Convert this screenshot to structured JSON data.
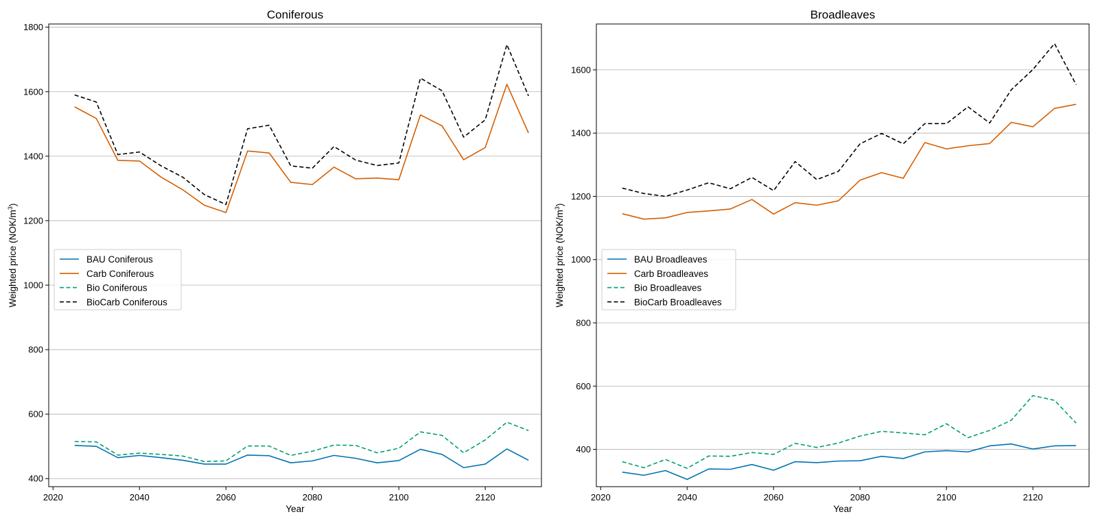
{
  "chart_data": [
    {
      "type": "line",
      "title": "Coniferous",
      "xlabel": "Year",
      "ylabel_main": "Weighted price (NOK/m",
      "ylabel_sup": "3",
      "ylabel_close": ")",
      "xlim": [
        2019,
        2133
      ],
      "ylim": [
        375,
        1810
      ],
      "xticks": [
        2020,
        2040,
        2060,
        2080,
        2100,
        2120
      ],
      "yticks": [
        400,
        600,
        800,
        1000,
        1200,
        1400,
        1600,
        1800
      ],
      "grid": "horizontal",
      "legend_placement": "center-left",
      "x": [
        2025,
        2030,
        2035,
        2040,
        2045,
        2050,
        2055,
        2060,
        2065,
        2070,
        2075,
        2080,
        2085,
        2090,
        2095,
        2100,
        2105,
        2110,
        2115,
        2120,
        2125,
        2130
      ],
      "series": [
        {
          "name": "BAU Coniferous",
          "color": "#0072B2",
          "dash": "solid",
          "values": [
            503,
            500,
            465,
            472,
            465,
            457,
            445,
            445,
            473,
            471,
            449,
            455,
            472,
            463,
            449,
            456,
            491,
            475,
            434,
            445,
            492,
            457
          ]
        },
        {
          "name": "Carb Coniferous",
          "color": "#D55E00",
          "dash": "solid",
          "values": [
            1553,
            1517,
            1387,
            1385,
            1335,
            1296,
            1248,
            1225,
            1416,
            1410,
            1319,
            1312,
            1366,
            1330,
            1332,
            1327,
            1528,
            1494,
            1389,
            1427,
            1623,
            1472
          ]
        },
        {
          "name": "Bio Coniferous",
          "color": "#009E73",
          "dash": "dashed",
          "values": [
            515,
            514,
            473,
            479,
            475,
            470,
            453,
            455,
            501,
            501,
            472,
            485,
            504,
            503,
            480,
            494,
            545,
            534,
            480,
            520,
            575,
            549
          ]
        },
        {
          "name": "BioCarb Coniferous",
          "color": "#000000",
          "dash": "dashed",
          "values": [
            1590,
            1568,
            1405,
            1413,
            1370,
            1335,
            1281,
            1250,
            1485,
            1496,
            1370,
            1363,
            1430,
            1388,
            1371,
            1379,
            1642,
            1603,
            1459,
            1513,
            1746,
            1587
          ]
        }
      ]
    },
    {
      "type": "line",
      "title": "Broadleaves",
      "xlabel": "Year",
      "ylabel_main": "Weighted price (NOK/m",
      "ylabel_sup": "3",
      "ylabel_close": ")",
      "xlim": [
        2019,
        2133
      ],
      "ylim": [
        282,
        1745
      ],
      "xticks": [
        2020,
        2040,
        2060,
        2080,
        2100,
        2120
      ],
      "yticks": [
        400,
        600,
        800,
        1000,
        1200,
        1400,
        1600
      ],
      "grid": "horizontal",
      "legend_placement": "center-left",
      "x": [
        2025,
        2030,
        2035,
        2040,
        2045,
        2050,
        2055,
        2060,
        2065,
        2070,
        2075,
        2080,
        2085,
        2090,
        2095,
        2100,
        2105,
        2110,
        2115,
        2120,
        2125,
        2130
      ],
      "series": [
        {
          "name": "BAU Broadleaves",
          "color": "#0072B2",
          "dash": "solid",
          "values": [
            328,
            318,
            333,
            305,
            338,
            337,
            352,
            334,
            361,
            358,
            363,
            364,
            378,
            371,
            392,
            396,
            392,
            411,
            417,
            401,
            411,
            412
          ]
        },
        {
          "name": "Carb Broadleaves",
          "color": "#D55E00",
          "dash": "solid",
          "values": [
            1145,
            1128,
            1132,
            1149,
            1154,
            1160,
            1190,
            1144,
            1180,
            1172,
            1186,
            1251,
            1275,
            1257,
            1370,
            1350,
            1360,
            1367,
            1434,
            1420,
            1478,
            1491
          ]
        },
        {
          "name": "Bio Broadleaves",
          "color": "#009E73",
          "dash": "dashed",
          "values": [
            361,
            342,
            368,
            340,
            379,
            378,
            390,
            384,
            419,
            406,
            420,
            442,
            457,
            452,
            446,
            481,
            437,
            460,
            492,
            570,
            555,
            483
          ]
        },
        {
          "name": "BioCarb Broadleaves",
          "color": "#000000",
          "dash": "dashed",
          "values": [
            1226,
            1209,
            1200,
            1220,
            1243,
            1224,
            1260,
            1218,
            1310,
            1253,
            1279,
            1366,
            1399,
            1366,
            1430,
            1430,
            1483,
            1432,
            1537,
            1601,
            1683,
            1553
          ]
        }
      ]
    }
  ]
}
